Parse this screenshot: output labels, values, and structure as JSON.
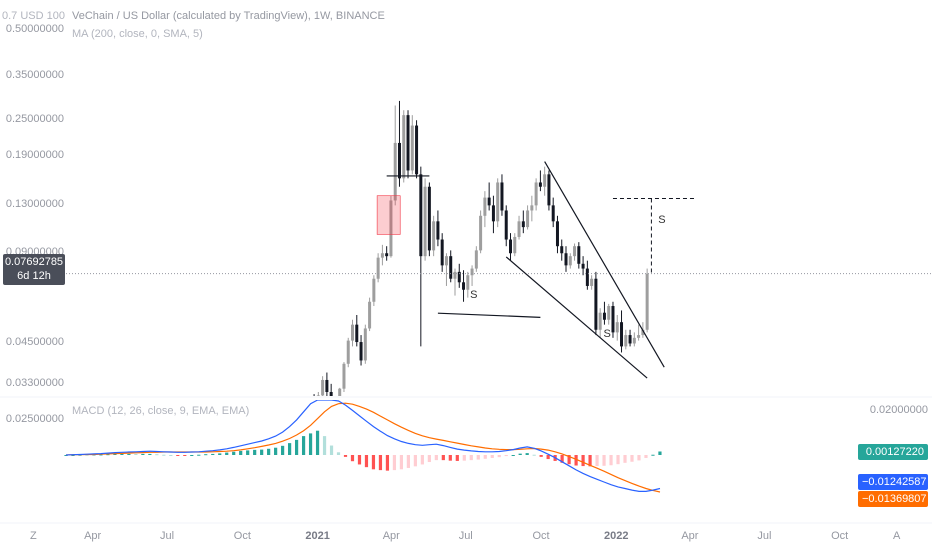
{
  "header": {
    "top_scale_label": "0.7 USD 100",
    "title": "VeChain / US Dollar (calculated by TradingView), 1W, BINANCE",
    "ma_label": "MA (200, close, 0, SMA, 5)"
  },
  "macd_legend": "MACD (12, 26, close, 9, EMA, EMA)",
  "price_tag": {
    "value": "0.07692785",
    "countdown": "6d 12h"
  },
  "corner_left": "Z",
  "corner_right": "A",
  "colors": {
    "bull": "#9e9e9e",
    "bear": "#131722",
    "macd_line": "#2962ff",
    "signal_line": "#ff6d00",
    "hist_up_strong": "#26a69a",
    "hist_down_strong": "#ff5252",
    "hist_down_weak": "#ffcdd2",
    "badge_green": "#26a69a",
    "badge_blue": "#2962ff",
    "badge_orange": "#ff6d00"
  },
  "chart_data": [
    {
      "type": "candlestick",
      "title": "VeChain / US Dollar (calculated by TradingView), 1W, BINANCE",
      "y_scale": "log",
      "y_ticks": [
        "0.50000000",
        "0.35000000",
        "0.25000000",
        "0.19000000",
        "0.13000000",
        "0.09000000",
        "0.04500000",
        "0.03300000",
        "0.02500000"
      ],
      "x_ticks": [
        "Apr",
        "Jul",
        "Oct",
        "2021",
        "Apr",
        "Jul",
        "Oct",
        "2022",
        "Apr",
        "Jul",
        "Oct"
      ],
      "x_ticks_bold": [
        "2021",
        "2022"
      ],
      "last_price": 0.07692785,
      "annotations": [
        {
          "text": "S",
          "date": "2021-07-10",
          "price": 0.065
        },
        {
          "text": "S",
          "date": "2021-12-20",
          "price": 0.048
        },
        {
          "text": "S",
          "date": "2022-02-25",
          "price": 0.115
        }
      ],
      "candles": [
        {
          "o": 0.0235,
          "h": 0.0252,
          "l": 0.0225,
          "c": 0.0245
        },
        {
          "o": 0.0245,
          "h": 0.0262,
          "l": 0.0238,
          "c": 0.024
        },
        {
          "o": 0.024,
          "h": 0.0275,
          "l": 0.0236,
          "c": 0.0268
        },
        {
          "o": 0.0268,
          "h": 0.03,
          "l": 0.026,
          "c": 0.0292
        },
        {
          "o": 0.0292,
          "h": 0.0305,
          "l": 0.0268,
          "c": 0.0275
        },
        {
          "o": 0.0275,
          "h": 0.031,
          "l": 0.027,
          "c": 0.0302
        },
        {
          "o": 0.0302,
          "h": 0.035,
          "l": 0.0295,
          "c": 0.034
        },
        {
          "o": 0.034,
          "h": 0.036,
          "l": 0.03,
          "c": 0.031
        },
        {
          "o": 0.031,
          "h": 0.033,
          "l": 0.027,
          "c": 0.0282
        },
        {
          "o": 0.0282,
          "h": 0.03,
          "l": 0.0255,
          "c": 0.0262
        },
        {
          "o": 0.0262,
          "h": 0.032,
          "l": 0.0258,
          "c": 0.0318
        },
        {
          "o": 0.0318,
          "h": 0.039,
          "l": 0.031,
          "c": 0.0385
        },
        {
          "o": 0.0385,
          "h": 0.047,
          "l": 0.0375,
          "c": 0.046
        },
        {
          "o": 0.046,
          "h": 0.054,
          "l": 0.044,
          "c": 0.052
        },
        {
          "o": 0.052,
          "h": 0.056,
          "l": 0.044,
          "c": 0.0455
        },
        {
          "o": 0.0455,
          "h": 0.048,
          "l": 0.038,
          "c": 0.0395
        },
        {
          "o": 0.0395,
          "h": 0.052,
          "l": 0.0385,
          "c": 0.0505
        },
        {
          "o": 0.0505,
          "h": 0.064,
          "l": 0.0495,
          "c": 0.062
        },
        {
          "o": 0.062,
          "h": 0.076,
          "l": 0.06,
          "c": 0.074
        },
        {
          "o": 0.074,
          "h": 0.09,
          "l": 0.072,
          "c": 0.087
        },
        {
          "o": 0.087,
          "h": 0.096,
          "l": 0.082,
          "c": 0.09
        },
        {
          "o": 0.09,
          "h": 0.095,
          "l": 0.085,
          "c": 0.088
        },
        {
          "o": 0.088,
          "h": 0.14,
          "l": 0.087,
          "c": 0.135
        },
        {
          "o": 0.135,
          "h": 0.28,
          "l": 0.13,
          "c": 0.21
        },
        {
          "o": 0.21,
          "h": 0.29,
          "l": 0.15,
          "c": 0.16
        },
        {
          "o": 0.16,
          "h": 0.27,
          "l": 0.155,
          "c": 0.26
        },
        {
          "o": 0.26,
          "h": 0.27,
          "l": 0.16,
          "c": 0.17
        },
        {
          "o": 0.17,
          "h": 0.26,
          "l": 0.165,
          "c": 0.24
        },
        {
          "o": 0.24,
          "h": 0.25,
          "l": 0.16,
          "c": 0.165
        },
        {
          "o": 0.165,
          "h": 0.175,
          "l": 0.044,
          "c": 0.088
        },
        {
          "o": 0.088,
          "h": 0.16,
          "l": 0.085,
          "c": 0.15
        },
        {
          "o": 0.15,
          "h": 0.155,
          "l": 0.088,
          "c": 0.092
        },
        {
          "o": 0.092,
          "h": 0.12,
          "l": 0.088,
          "c": 0.115
        },
        {
          "o": 0.115,
          "h": 0.125,
          "l": 0.095,
          "c": 0.1
        },
        {
          "o": 0.1,
          "h": 0.105,
          "l": 0.078,
          "c": 0.082
        },
        {
          "o": 0.082,
          "h": 0.09,
          "l": 0.07,
          "c": 0.088
        },
        {
          "o": 0.088,
          "h": 0.092,
          "l": 0.072,
          "c": 0.074
        },
        {
          "o": 0.074,
          "h": 0.08,
          "l": 0.065,
          "c": 0.078
        },
        {
          "o": 0.078,
          "h": 0.083,
          "l": 0.069,
          "c": 0.072
        },
        {
          "o": 0.072,
          "h": 0.079,
          "l": 0.062,
          "c": 0.068
        },
        {
          "o": 0.068,
          "h": 0.078,
          "l": 0.064,
          "c": 0.076
        },
        {
          "o": 0.076,
          "h": 0.082,
          "l": 0.07,
          "c": 0.08
        },
        {
          "o": 0.08,
          "h": 0.095,
          "l": 0.078,
          "c": 0.092
        },
        {
          "o": 0.092,
          "h": 0.125,
          "l": 0.09,
          "c": 0.12
        },
        {
          "o": 0.12,
          "h": 0.145,
          "l": 0.11,
          "c": 0.138
        },
        {
          "o": 0.138,
          "h": 0.155,
          "l": 0.125,
          "c": 0.13
        },
        {
          "o": 0.13,
          "h": 0.14,
          "l": 0.105,
          "c": 0.115
        },
        {
          "o": 0.115,
          "h": 0.16,
          "l": 0.11,
          "c": 0.155
        },
        {
          "o": 0.155,
          "h": 0.165,
          "l": 0.12,
          "c": 0.125
        },
        {
          "o": 0.125,
          "h": 0.13,
          "l": 0.095,
          "c": 0.1
        },
        {
          "o": 0.1,
          "h": 0.105,
          "l": 0.085,
          "c": 0.09
        },
        {
          "o": 0.09,
          "h": 0.105,
          "l": 0.088,
          "c": 0.102
        },
        {
          "o": 0.102,
          "h": 0.12,
          "l": 0.1,
          "c": 0.115
        },
        {
          "o": 0.115,
          "h": 0.125,
          "l": 0.105,
          "c": 0.11
        },
        {
          "o": 0.11,
          "h": 0.13,
          "l": 0.108,
          "c": 0.125
        },
        {
          "o": 0.125,
          "h": 0.14,
          "l": 0.115,
          "c": 0.13
        },
        {
          "o": 0.13,
          "h": 0.16,
          "l": 0.125,
          "c": 0.155
        },
        {
          "o": 0.155,
          "h": 0.17,
          "l": 0.145,
          "c": 0.15
        },
        {
          "o": 0.15,
          "h": 0.175,
          "l": 0.14,
          "c": 0.165
        },
        {
          "o": 0.165,
          "h": 0.17,
          "l": 0.125,
          "c": 0.13
        },
        {
          "o": 0.13,
          "h": 0.138,
          "l": 0.11,
          "c": 0.115
        },
        {
          "o": 0.115,
          "h": 0.12,
          "l": 0.09,
          "c": 0.095
        },
        {
          "o": 0.095,
          "h": 0.1,
          "l": 0.085,
          "c": 0.09
        },
        {
          "o": 0.09,
          "h": 0.095,
          "l": 0.078,
          "c": 0.082
        },
        {
          "o": 0.082,
          "h": 0.09,
          "l": 0.08,
          "c": 0.088
        },
        {
          "o": 0.088,
          "h": 0.097,
          "l": 0.085,
          "c": 0.095
        },
        {
          "o": 0.095,
          "h": 0.098,
          "l": 0.08,
          "c": 0.083
        },
        {
          "o": 0.083,
          "h": 0.088,
          "l": 0.076,
          "c": 0.08
        },
        {
          "o": 0.08,
          "h": 0.085,
          "l": 0.068,
          "c": 0.07
        },
        {
          "o": 0.07,
          "h": 0.076,
          "l": 0.068,
          "c": 0.074
        },
        {
          "o": 0.074,
          "h": 0.078,
          "l": 0.048,
          "c": 0.05
        },
        {
          "o": 0.05,
          "h": 0.059,
          "l": 0.047,
          "c": 0.057
        },
        {
          "o": 0.057,
          "h": 0.062,
          "l": 0.052,
          "c": 0.054
        },
        {
          "o": 0.054,
          "h": 0.061,
          "l": 0.052,
          "c": 0.06
        },
        {
          "o": 0.06,
          "h": 0.062,
          "l": 0.047,
          "c": 0.049
        },
        {
          "o": 0.049,
          "h": 0.056,
          "l": 0.046,
          "c": 0.053
        },
        {
          "o": 0.053,
          "h": 0.058,
          "l": 0.042,
          "c": 0.044
        },
        {
          "o": 0.044,
          "h": 0.05,
          "l": 0.043,
          "c": 0.048
        },
        {
          "o": 0.048,
          "h": 0.05,
          "l": 0.044,
          "c": 0.045
        },
        {
          "o": 0.045,
          "h": 0.049,
          "l": 0.044,
          "c": 0.047
        },
        {
          "o": 0.047,
          "h": 0.052,
          "l": 0.046,
          "c": 0.048
        },
        {
          "o": 0.048,
          "h": 0.053,
          "l": 0.047,
          "c": 0.05
        },
        {
          "o": 0.05,
          "h": 0.08,
          "l": 0.049,
          "c": 0.0769
        }
      ]
    },
    {
      "type": "bar",
      "title": "MACD (12, 26, close, 9, EMA, EMA)",
      "y_ticks": [
        "0.02000000"
      ],
      "last_values": {
        "histogram": "0.00127220",
        "macd": "−0.01242587",
        "signal": "−0.01369807"
      },
      "series": [
        {
          "name": "MACD",
          "values": [
            0.0,
            0.0001,
            0.0002,
            0.0003,
            0.0004,
            0.0005,
            0.0007,
            0.0009,
            0.001,
            0.0011,
            0.0012,
            0.0013,
            0.0014,
            0.0013,
            0.0012,
            0.0011,
            0.001,
            0.001,
            0.0011,
            0.0012,
            0.0014,
            0.0016,
            0.0019,
            0.0023,
            0.0028,
            0.0034,
            0.004,
            0.0046,
            0.0052,
            0.006,
            0.007,
            0.0085,
            0.0105,
            0.013,
            0.016,
            0.019,
            0.0225,
            0.023,
            0.0215,
            0.02,
            0.0185,
            0.0165,
            0.0145,
            0.0125,
            0.0105,
            0.0088,
            0.0072,
            0.006,
            0.005,
            0.0043,
            0.0038,
            0.0036,
            0.0038,
            0.004,
            0.0035,
            0.0028,
            0.0022,
            0.0018,
            0.0015,
            0.0013,
            0.0012,
            0.0012,
            0.0013,
            0.0016,
            0.002,
            0.0026,
            0.003,
            0.0025,
            0.0015,
            0.0003,
            -0.001,
            -0.0025,
            -0.004,
            -0.0055,
            -0.0068,
            -0.008,
            -0.009,
            -0.01,
            -0.011,
            -0.0118,
            -0.0124,
            -0.013,
            -0.0135,
            -0.0135,
            -0.013,
            -0.0124
          ]
        },
        {
          "name": "Signal",
          "values": [
            0.0,
            0.0001,
            0.0001,
            0.0002,
            0.0002,
            0.0003,
            0.0004,
            0.0005,
            0.0006,
            0.0007,
            0.0008,
            0.0009,
            0.001,
            0.001,
            0.0011,
            0.0011,
            0.0011,
            0.0011,
            0.0011,
            0.0011,
            0.0011,
            0.0012,
            0.0013,
            0.0014,
            0.0016,
            0.0019,
            0.0023,
            0.0027,
            0.0032,
            0.0037,
            0.0043,
            0.0051,
            0.0061,
            0.0074,
            0.009,
            0.011,
            0.0135,
            0.016,
            0.018,
            0.019,
            0.0192,
            0.0188,
            0.018,
            0.017,
            0.0158,
            0.0144,
            0.013,
            0.0116,
            0.0103,
            0.0091,
            0.008,
            0.0071,
            0.0064,
            0.0059,
            0.0054,
            0.0049,
            0.0044,
            0.0039,
            0.0034,
            0.003,
            0.0026,
            0.0023,
            0.0021,
            0.002,
            0.002,
            0.0021,
            0.0023,
            0.0024,
            0.0022,
            0.0018,
            0.0012,
            0.0004,
            -0.0006,
            -0.0016,
            -0.0027,
            -0.0038,
            -0.0049,
            -0.006,
            -0.0072,
            -0.0084,
            -0.0095,
            -0.0105,
            -0.0115,
            -0.0124,
            -0.0131,
            -0.0137
          ]
        }
      ]
    }
  ]
}
